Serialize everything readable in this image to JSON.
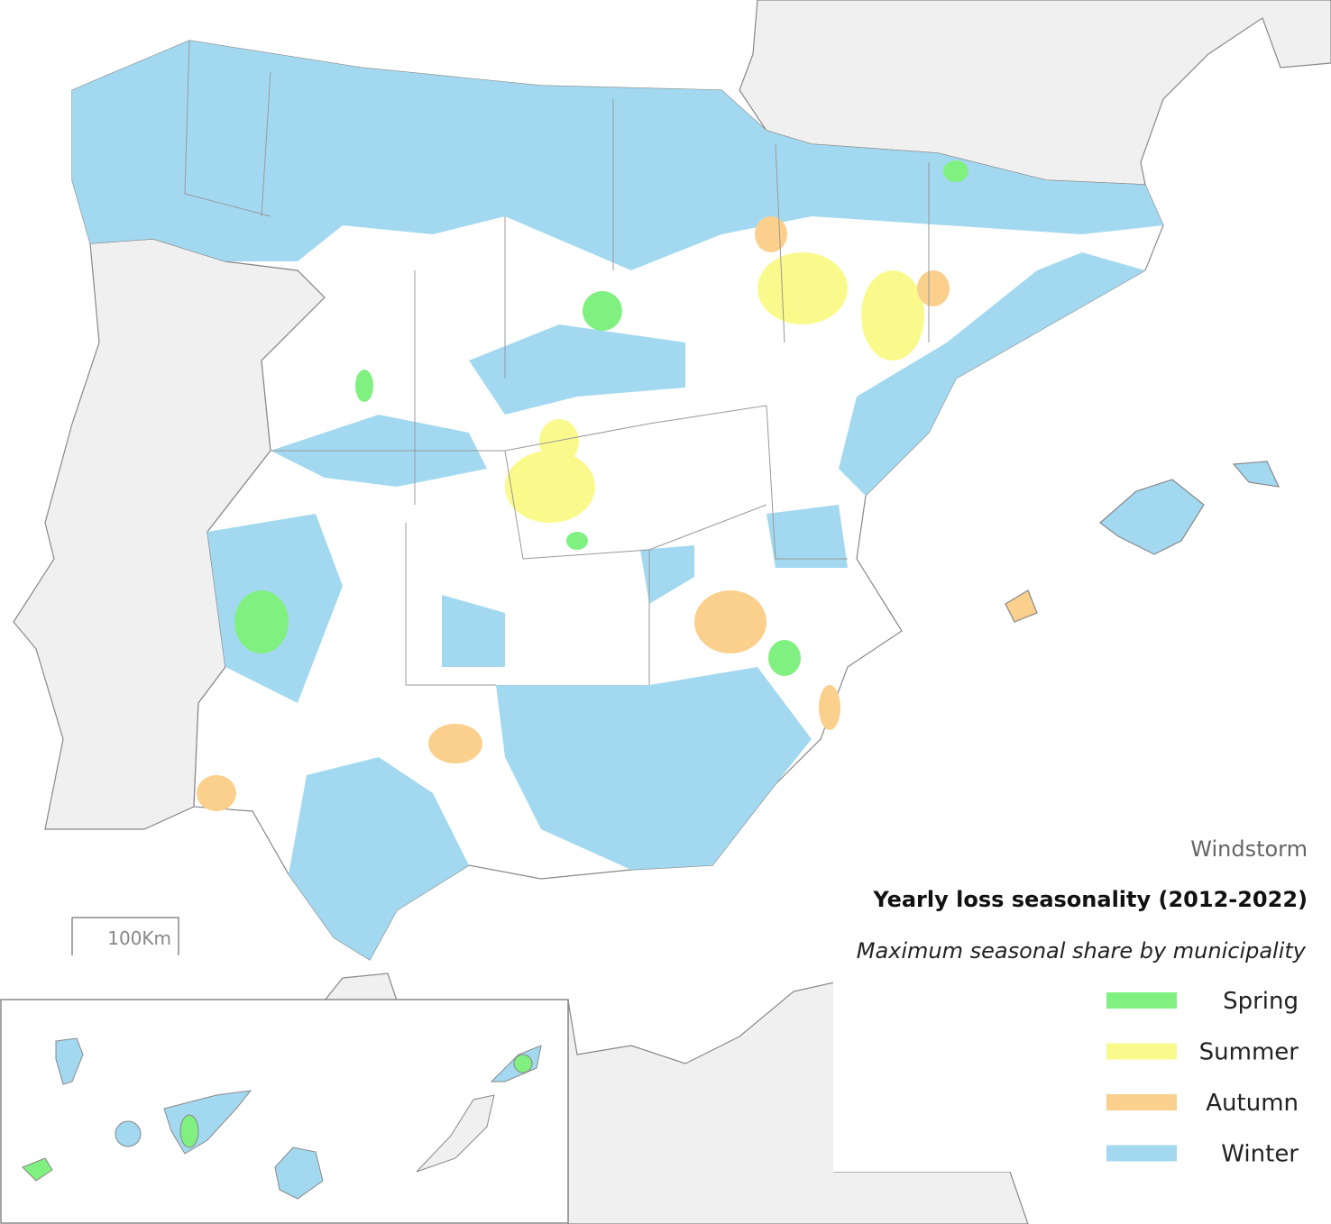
{
  "map": {
    "category": "Windstorm",
    "title": "Yearly loss seasonality (2012-2022)",
    "subtitle": "Maximum seasonal share by municipality",
    "scale_bar": "100Km",
    "legend": [
      {
        "label": "Spring",
        "color": "#80f080"
      },
      {
        "label": "Summer",
        "color": "#fafa8c"
      },
      {
        "label": "Autumn",
        "color": "#fad08c"
      },
      {
        "label": "Winter",
        "color": "#a3d9f0"
      }
    ]
  }
}
